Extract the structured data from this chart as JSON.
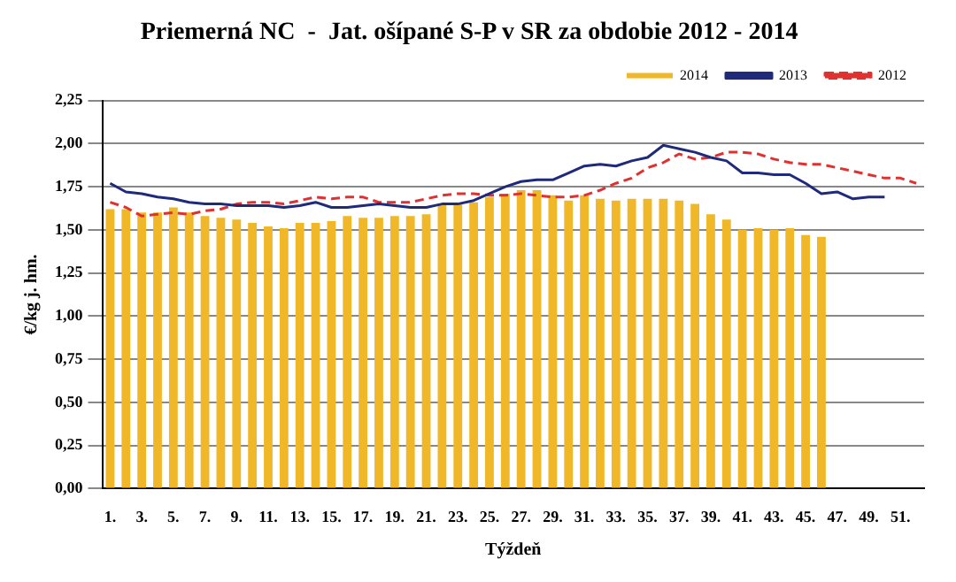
{
  "chart_data": {
    "type": "bar",
    "title": "Priemerná NC  -  Jat. ošípané S-P v SR za obdobie 2012 - 2014",
    "xlabel": "Týždeň",
    "ylabel": "€/kg j. hm.",
    "categories": [
      "1.",
      null,
      "3.",
      null,
      "5.",
      null,
      "7.",
      null,
      "9.",
      null,
      "11.",
      null,
      "13.",
      null,
      "15.",
      null,
      "17.",
      null,
      "19.",
      null,
      "21.",
      null,
      "23.",
      null,
      "25.",
      null,
      "27.",
      null,
      "29.",
      null,
      "31.",
      null,
      "33.",
      null,
      "35.",
      null,
      "37.",
      null,
      "39.",
      null,
      "41.",
      null,
      "43.",
      null,
      "45.",
      null,
      "47.",
      null,
      "49.",
      null,
      "51.",
      null
    ],
    "series": [
      {
        "name": "2014",
        "color": "#f0b828",
        "values": [
          1.62,
          1.62,
          1.6,
          1.6,
          1.63,
          1.6,
          1.58,
          1.57,
          1.56,
          1.54,
          1.52,
          1.51,
          1.54,
          1.54,
          1.55,
          1.58,
          1.57,
          1.57,
          1.58,
          1.58,
          1.59,
          1.65,
          1.65,
          1.66,
          1.69,
          1.71,
          1.73,
          1.73,
          1.7,
          1.67,
          1.7,
          1.68,
          1.67,
          1.68,
          1.68,
          1.68,
          1.67,
          1.65,
          1.59,
          1.56,
          1.5,
          1.51,
          1.5,
          1.51,
          1.47,
          1.46,
          null,
          null,
          null,
          null,
          null,
          null
        ]
      },
      {
        "name": "2013",
        "type": "line",
        "color": "#1f2a7a",
        "line_style": "solid",
        "values": [
          1.77,
          1.72,
          1.71,
          1.69,
          1.68,
          1.66,
          1.65,
          1.65,
          1.64,
          1.64,
          1.64,
          1.63,
          1.64,
          1.66,
          1.63,
          1.63,
          1.64,
          1.65,
          1.64,
          1.63,
          1.63,
          1.65,
          1.65,
          1.67,
          1.71,
          1.75,
          1.78,
          1.79,
          1.79,
          1.83,
          1.87,
          1.88,
          1.87,
          1.9,
          1.92,
          1.99,
          1.97,
          1.95,
          1.92,
          1.9,
          1.83,
          1.83,
          1.82,
          1.82,
          1.77,
          1.71,
          1.72,
          1.68,
          1.69,
          1.69,
          null,
          null
        ]
      },
      {
        "name": "2012",
        "type": "line",
        "color": "#e03030",
        "line_style": "dashed",
        "values": [
          1.66,
          1.63,
          1.58,
          1.59,
          1.6,
          1.59,
          1.61,
          1.62,
          1.65,
          1.66,
          1.66,
          1.65,
          1.67,
          1.69,
          1.68,
          1.69,
          1.69,
          1.66,
          1.66,
          1.66,
          1.68,
          1.7,
          1.71,
          1.71,
          1.7,
          1.7,
          1.71,
          1.7,
          1.69,
          1.69,
          1.7,
          1.73,
          1.77,
          1.8,
          1.86,
          1.89,
          1.94,
          1.91,
          1.92,
          1.95,
          1.95,
          1.94,
          1.91,
          1.89,
          1.88,
          1.88,
          1.86,
          1.84,
          1.82,
          1.8,
          1.8,
          1.77
        ]
      }
    ],
    "ylim": [
      0,
      2.25
    ],
    "yticks": [
      {
        "value": 0,
        "label": "0,00"
      },
      {
        "value": 0.25,
        "label": "0,25"
      },
      {
        "value": 0.5,
        "label": "0,50"
      },
      {
        "value": 0.75,
        "label": "0,75"
      },
      {
        "value": 1,
        "label": "1,00"
      },
      {
        "value": 1.25,
        "label": "1,25"
      },
      {
        "value": 1.5,
        "label": "1,50"
      },
      {
        "value": 1.75,
        "label": "1,75"
      },
      {
        "value": 2,
        "label": "2,00"
      },
      {
        "value": 2.25,
        "label": "2,25"
      }
    ],
    "grid": "y",
    "legend": "top right",
    "marker": "none"
  }
}
